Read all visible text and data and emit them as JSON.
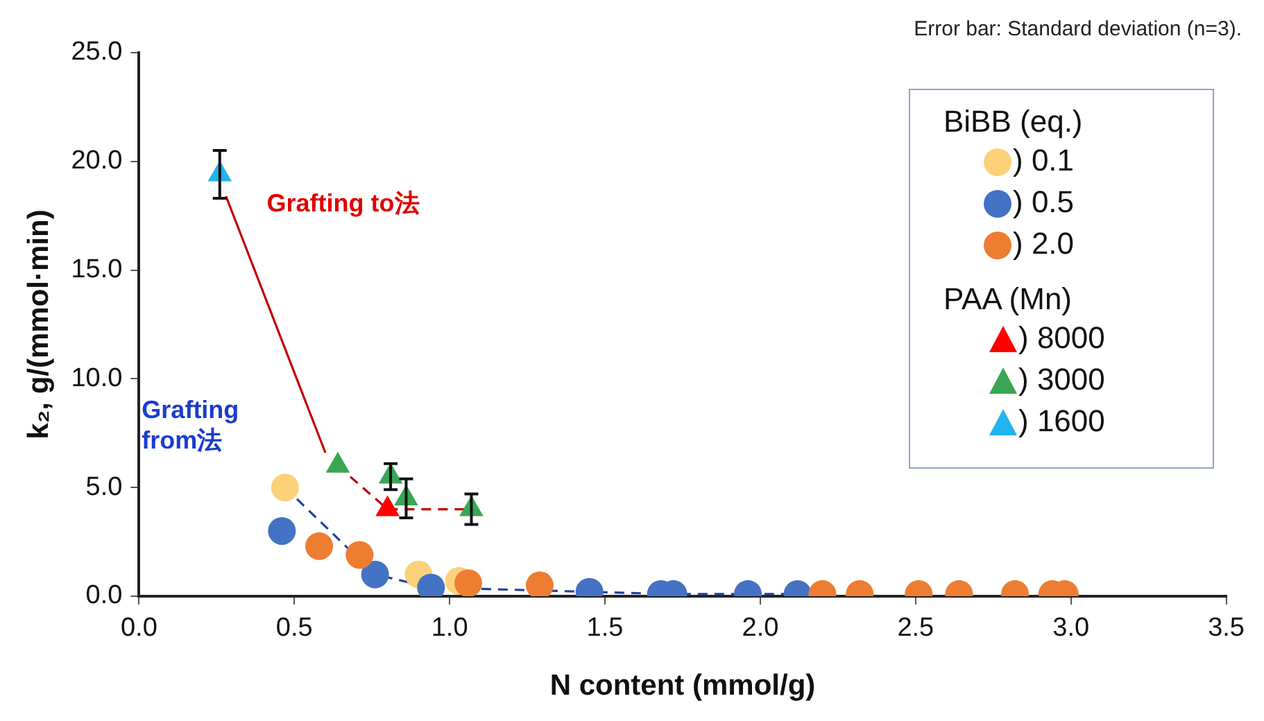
{
  "chart_data": {
    "type": "scatter",
    "xlabel": "N content (mmol/g)",
    "ylabel": "k₂, g/(mmol·min)",
    "legend_title": "BiBB (eq.)",
    "annotations": [
      "Error bar: Standard deviation (n=3).",
      "Grafting to法",
      "Grafting from法",
      "PAA (Mn)"
    ],
    "xlim": [
      0,
      3.5
    ],
    "xticks": [
      {
        "value": 0,
        "label": "0.0"
      },
      {
        "value": 0.5,
        "label": "0.5"
      },
      {
        "value": 1,
        "label": "1.0"
      },
      {
        "value": 1.5,
        "label": "1.5"
      },
      {
        "value": 2,
        "label": "2.0"
      },
      {
        "value": 2.5,
        "label": "2.5"
      },
      {
        "value": 3,
        "label": "3.0"
      },
      {
        "value": 3.5,
        "label": "3.5"
      }
    ],
    "ylim": [
      0,
      25
    ],
    "yticks": [
      {
        "value": 0,
        "label": "0.0"
      },
      {
        "value": 5,
        "label": "5.0"
      },
      {
        "value": 10,
        "label": "10.0"
      },
      {
        "value": 15,
        "label": "15.0"
      },
      {
        "value": 20,
        "label": "20.0"
      },
      {
        "value": 25,
        "label": "25.0"
      }
    ],
    "legend": "top right",
    "series": [
      {
        "type": "line",
        "color": "#c00000",
        "line_style": "solid",
        "marker": "none",
        "x": [
          0.28,
          0.6
        ],
        "values": [
          18.4,
          6.6
        ]
      },
      {
        "type": "line",
        "color": "#c00000",
        "line_style": "dashed",
        "marker": "none",
        "x": [
          0.64,
          0.8,
          1.07
        ],
        "values": [
          6.0,
          4.0,
          4.0
        ]
      },
      {
        "type": "line",
        "color": "#2040a0",
        "line_style": "dashed",
        "marker": "none",
        "x": [
          0.47,
          0.76,
          0.94,
          1.45,
          1.71,
          1.96,
          2.12
        ],
        "values": [
          5.0,
          1.0,
          0.4,
          0.2,
          0.1,
          0.1,
          0.1
        ]
      },
      {
        "name": ") 0.1",
        "color": "#fbd27a",
        "marker": "circle",
        "x": [
          0.47,
          0.9,
          1.03
        ],
        "values": [
          5.0,
          1.0,
          0.7
        ]
      },
      {
        "name": ") 0.5",
        "color": "#4472c4",
        "marker": "circle",
        "x": [
          0.46,
          0.76,
          0.94,
          1.45,
          1.68,
          1.72,
          1.96,
          2.12
        ],
        "values": [
          3.0,
          1.0,
          0.4,
          0.2,
          0.1,
          0.1,
          0.1,
          0.1
        ]
      },
      {
        "name": ") 2.0",
        "color": "#ed7d31",
        "marker": "circle",
        "x": [
          0.58,
          0.71,
          1.06,
          1.29,
          2.2,
          2.32,
          2.51,
          2.64,
          2.82,
          2.94,
          2.98
        ],
        "values": [
          2.3,
          1.9,
          0.6,
          0.5,
          0.1,
          0.1,
          0.1,
          0.1,
          0.1,
          0.1,
          0.1
        ]
      },
      {
        "name": ") 8000",
        "color": "#ff0000",
        "marker": "triangle",
        "x": [
          0.8
        ],
        "values": [
          4.0
        ],
        "errors": [
          null
        ]
      },
      {
        "name": ") 3000",
        "color": "#3aa655",
        "marker": "triangle",
        "x": [
          0.64,
          0.81,
          0.86,
          1.07
        ],
        "values": [
          6.0,
          5.5,
          4.5,
          4.0
        ],
        "errors": [
          null,
          0.6,
          0.9,
          0.7
        ]
      },
      {
        "name": ") 1600",
        "color": "#22b4ec",
        "marker": "triangle",
        "x": [
          0.26
        ],
        "values": [
          19.4
        ],
        "errors": [
          1.1
        ]
      }
    ]
  }
}
